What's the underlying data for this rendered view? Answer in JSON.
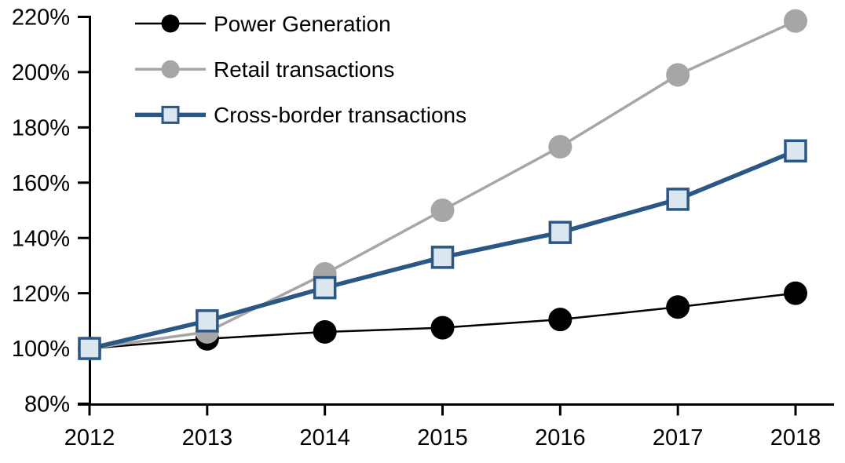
{
  "chart_data": {
    "type": "line",
    "title": "",
    "xlabel": "",
    "ylabel": "",
    "x": [
      2012,
      2013,
      2014,
      2015,
      2016,
      2017,
      2018
    ],
    "xtick_labels": [
      "2012",
      "2013",
      "2014",
      "2015",
      "2016",
      "2017",
      "2018"
    ],
    "ylim": [
      80,
      220
    ],
    "ytick_step": 20,
    "ytick_labels": [
      "80%",
      "100%",
      "120%",
      "140%",
      "160%",
      "180%",
      "200%",
      "220%"
    ],
    "grid": false,
    "legend_position": "top-left-inside",
    "series": [
      {
        "id": "power-generation",
        "name": "Power Generation",
        "values": [
          100,
          103.5,
          106,
          107.5,
          110.5,
          115,
          120
        ],
        "color": "#000000",
        "marker": "circle",
        "marker_fill": "#000000",
        "line_width": 2.5
      },
      {
        "id": "retail-transactions",
        "name": "Retail transactions",
        "values": [
          100,
          106,
          127,
          150,
          173,
          199,
          218.5
        ],
        "color": "#A6A6A6",
        "marker": "circle",
        "marker_fill": "#A6A6A6",
        "line_width": 3.5
      },
      {
        "id": "cross-border-transactions",
        "name": "Cross-border transactions",
        "values": [
          100,
          110,
          122,
          133,
          142,
          154,
          171.5
        ],
        "color": "#2A5783",
        "marker": "square",
        "marker_fill": "#DCE6F1",
        "line_width": 5.5
      }
    ],
    "axis_color": "#000000",
    "background_color": "#FFFFFF"
  }
}
